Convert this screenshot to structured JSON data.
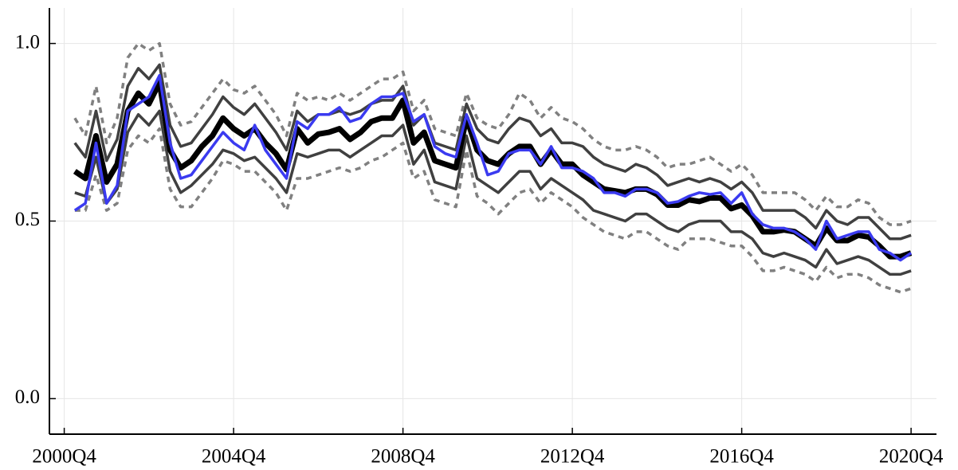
{
  "chart_data": {
    "type": "line",
    "x": [
      2001,
      2001.25,
      2001.5,
      2001.75,
      2002,
      2002.25,
      2002.5,
      2002.75,
      2003,
      2003.25,
      2003.5,
      2003.75,
      2004,
      2004.25,
      2004.5,
      2004.75,
      2005,
      2005.25,
      2005.5,
      2005.75,
      2006,
      2006.25,
      2006.5,
      2006.75,
      2007,
      2007.25,
      2007.5,
      2007.75,
      2008,
      2008.25,
      2008.5,
      2008.75,
      2009,
      2009.25,
      2009.5,
      2009.75,
      2010,
      2010.25,
      2010.5,
      2010.75,
      2011,
      2011.25,
      2011.5,
      2011.75,
      2012,
      2012.25,
      2012.5,
      2012.75,
      2013,
      2013.25,
      2013.5,
      2013.75,
      2014,
      2014.25,
      2014.5,
      2014.75,
      2015,
      2015.25,
      2015.5,
      2015.75,
      2016,
      2016.25,
      2016.5,
      2016.75,
      2017,
      2017.25,
      2017.5,
      2017.75,
      2018,
      2018.25,
      2018.5,
      2018.75,
      2019,
      2019.25,
      2019.5,
      2019.75,
      2020,
      2020.25,
      2020.5,
      2020.75
    ],
    "series": [
      {
        "color": "#808080",
        "dashed": true,
        "linewidth": 3.5,
        "values": [
          0.79,
          0.74,
          0.88,
          0.72,
          0.79,
          0.96,
          1.0,
          0.98,
          1.0,
          0.83,
          0.77,
          0.78,
          0.82,
          0.86,
          0.9,
          0.87,
          0.86,
          0.88,
          0.84,
          0.8,
          0.74,
          0.86,
          0.84,
          0.85,
          0.84,
          0.86,
          0.84,
          0.86,
          0.88,
          0.9,
          0.9,
          0.92,
          0.81,
          0.84,
          0.76,
          0.75,
          0.74,
          0.86,
          0.79,
          0.77,
          0.76,
          0.8,
          0.86,
          0.84,
          0.79,
          0.82,
          0.79,
          0.78,
          0.76,
          0.73,
          0.71,
          0.7,
          0.7,
          0.71,
          0.7,
          0.68,
          0.65,
          0.66,
          0.66,
          0.67,
          0.68,
          0.66,
          0.64,
          0.66,
          0.63,
          0.58,
          0.58,
          0.58,
          0.58,
          0.56,
          0.53,
          0.57,
          0.54,
          0.54,
          0.56,
          0.55,
          0.51,
          0.49,
          0.49,
          0.5
        ]
      },
      {
        "color": "#808080",
        "dashed": true,
        "linewidth": 3.5,
        "values": [
          0.53,
          0.53,
          0.63,
          0.53,
          0.55,
          0.7,
          0.74,
          0.72,
          0.76,
          0.59,
          0.54,
          0.54,
          0.58,
          0.62,
          0.67,
          0.66,
          0.64,
          0.64,
          0.61,
          0.58,
          0.53,
          0.62,
          0.62,
          0.63,
          0.64,
          0.65,
          0.64,
          0.65,
          0.67,
          0.68,
          0.7,
          0.72,
          0.62,
          0.64,
          0.56,
          0.55,
          0.54,
          0.7,
          0.57,
          0.55,
          0.52,
          0.55,
          0.58,
          0.59,
          0.55,
          0.58,
          0.56,
          0.54,
          0.51,
          0.49,
          0.47,
          0.46,
          0.45,
          0.47,
          0.47,
          0.45,
          0.43,
          0.42,
          0.45,
          0.45,
          0.45,
          0.44,
          0.43,
          0.43,
          0.4,
          0.36,
          0.36,
          0.37,
          0.36,
          0.35,
          0.33,
          0.37,
          0.34,
          0.35,
          0.35,
          0.34,
          0.32,
          0.31,
          0.3,
          0.31
        ]
      },
      {
        "color": "#404040",
        "dashed": false,
        "linewidth": 3.5,
        "values": [
          0.72,
          0.68,
          0.81,
          0.67,
          0.73,
          0.88,
          0.93,
          0.9,
          0.94,
          0.77,
          0.71,
          0.72,
          0.76,
          0.8,
          0.85,
          0.82,
          0.8,
          0.83,
          0.79,
          0.75,
          0.7,
          0.81,
          0.78,
          0.8,
          0.8,
          0.81,
          0.8,
          0.81,
          0.83,
          0.84,
          0.84,
          0.88,
          0.77,
          0.8,
          0.72,
          0.71,
          0.7,
          0.83,
          0.76,
          0.73,
          0.72,
          0.76,
          0.79,
          0.78,
          0.74,
          0.76,
          0.72,
          0.72,
          0.71,
          0.68,
          0.66,
          0.65,
          0.64,
          0.66,
          0.65,
          0.63,
          0.6,
          0.61,
          0.62,
          0.61,
          0.62,
          0.61,
          0.59,
          0.61,
          0.58,
          0.53,
          0.53,
          0.53,
          0.53,
          0.51,
          0.48,
          0.53,
          0.5,
          0.49,
          0.51,
          0.51,
          0.48,
          0.45,
          0.45,
          0.46
        ]
      },
      {
        "color": "#404040",
        "dashed": false,
        "linewidth": 3.5,
        "values": [
          0.58,
          0.57,
          0.68,
          0.55,
          0.59,
          0.75,
          0.8,
          0.77,
          0.81,
          0.64,
          0.58,
          0.6,
          0.63,
          0.66,
          0.7,
          0.69,
          0.67,
          0.68,
          0.65,
          0.62,
          0.58,
          0.69,
          0.68,
          0.69,
          0.7,
          0.7,
          0.68,
          0.7,
          0.72,
          0.74,
          0.74,
          0.77,
          0.66,
          0.7,
          0.61,
          0.6,
          0.59,
          0.74,
          0.62,
          0.6,
          0.58,
          0.61,
          0.64,
          0.64,
          0.59,
          0.62,
          0.6,
          0.58,
          0.56,
          0.53,
          0.52,
          0.51,
          0.5,
          0.52,
          0.52,
          0.5,
          0.48,
          0.47,
          0.49,
          0.5,
          0.5,
          0.5,
          0.47,
          0.47,
          0.45,
          0.41,
          0.4,
          0.41,
          0.4,
          0.39,
          0.37,
          0.42,
          0.38,
          0.39,
          0.4,
          0.39,
          0.37,
          0.35,
          0.35,
          0.36
        ]
      },
      {
        "color": "#000000",
        "dashed": false,
        "linewidth": 7,
        "values": [
          0.64,
          0.62,
          0.74,
          0.61,
          0.66,
          0.81,
          0.86,
          0.83,
          0.89,
          0.7,
          0.65,
          0.67,
          0.71,
          0.74,
          0.79,
          0.76,
          0.74,
          0.76,
          0.72,
          0.69,
          0.645,
          0.76,
          0.72,
          0.745,
          0.75,
          0.76,
          0.73,
          0.75,
          0.78,
          0.79,
          0.79,
          0.84,
          0.72,
          0.75,
          0.67,
          0.66,
          0.65,
          0.79,
          0.7,
          0.67,
          0.66,
          0.69,
          0.71,
          0.71,
          0.66,
          0.7,
          0.66,
          0.66,
          0.63,
          0.61,
          0.59,
          0.585,
          0.58,
          0.59,
          0.59,
          0.575,
          0.545,
          0.545,
          0.56,
          0.555,
          0.565,
          0.565,
          0.535,
          0.545,
          0.515,
          0.47,
          0.47,
          0.475,
          0.47,
          0.45,
          0.43,
          0.48,
          0.445,
          0.445,
          0.46,
          0.455,
          0.43,
          0.4,
          0.4,
          0.41
        ]
      },
      {
        "color": "#3a3af0",
        "dashed": false,
        "linewidth": 3.5,
        "values": [
          0.53,
          0.55,
          0.72,
          0.55,
          0.6,
          0.81,
          0.83,
          0.85,
          0.91,
          0.72,
          0.62,
          0.63,
          0.67,
          0.71,
          0.75,
          0.72,
          0.7,
          0.77,
          0.7,
          0.66,
          0.62,
          0.78,
          0.76,
          0.8,
          0.8,
          0.82,
          0.78,
          0.79,
          0.83,
          0.85,
          0.85,
          0.86,
          0.78,
          0.8,
          0.71,
          0.69,
          0.68,
          0.8,
          0.72,
          0.63,
          0.64,
          0.69,
          0.7,
          0.7,
          0.66,
          0.71,
          0.65,
          0.65,
          0.64,
          0.62,
          0.58,
          0.58,
          0.57,
          0.59,
          0.59,
          0.58,
          0.55,
          0.555,
          0.57,
          0.58,
          0.575,
          0.58,
          0.55,
          0.58,
          0.52,
          0.49,
          0.48,
          0.48,
          0.47,
          0.45,
          0.42,
          0.5,
          0.45,
          0.46,
          0.47,
          0.47,
          0.42,
          0.41,
          0.39,
          0.41
        ]
      }
    ],
    "xlim": [
      2000.4,
      2021.35
    ],
    "xticks": [
      {
        "value": 2000.75,
        "label": "2000Q4"
      },
      {
        "value": 2004.75,
        "label": "2004Q4"
      },
      {
        "value": 2008.75,
        "label": "2008Q4"
      },
      {
        "value": 2012.75,
        "label": "2012Q4"
      },
      {
        "value": 2016.75,
        "label": "2016Q4"
      },
      {
        "value": 2020.75,
        "label": "2020Q4"
      }
    ],
    "ylim": [
      -0.1,
      1.1
    ],
    "yticks": [
      {
        "value": 0,
        "label": "0.0"
      },
      {
        "value": 0.5,
        "label": "0.5"
      },
      {
        "value": 1,
        "label": "1.0"
      }
    ],
    "grid": true
  }
}
